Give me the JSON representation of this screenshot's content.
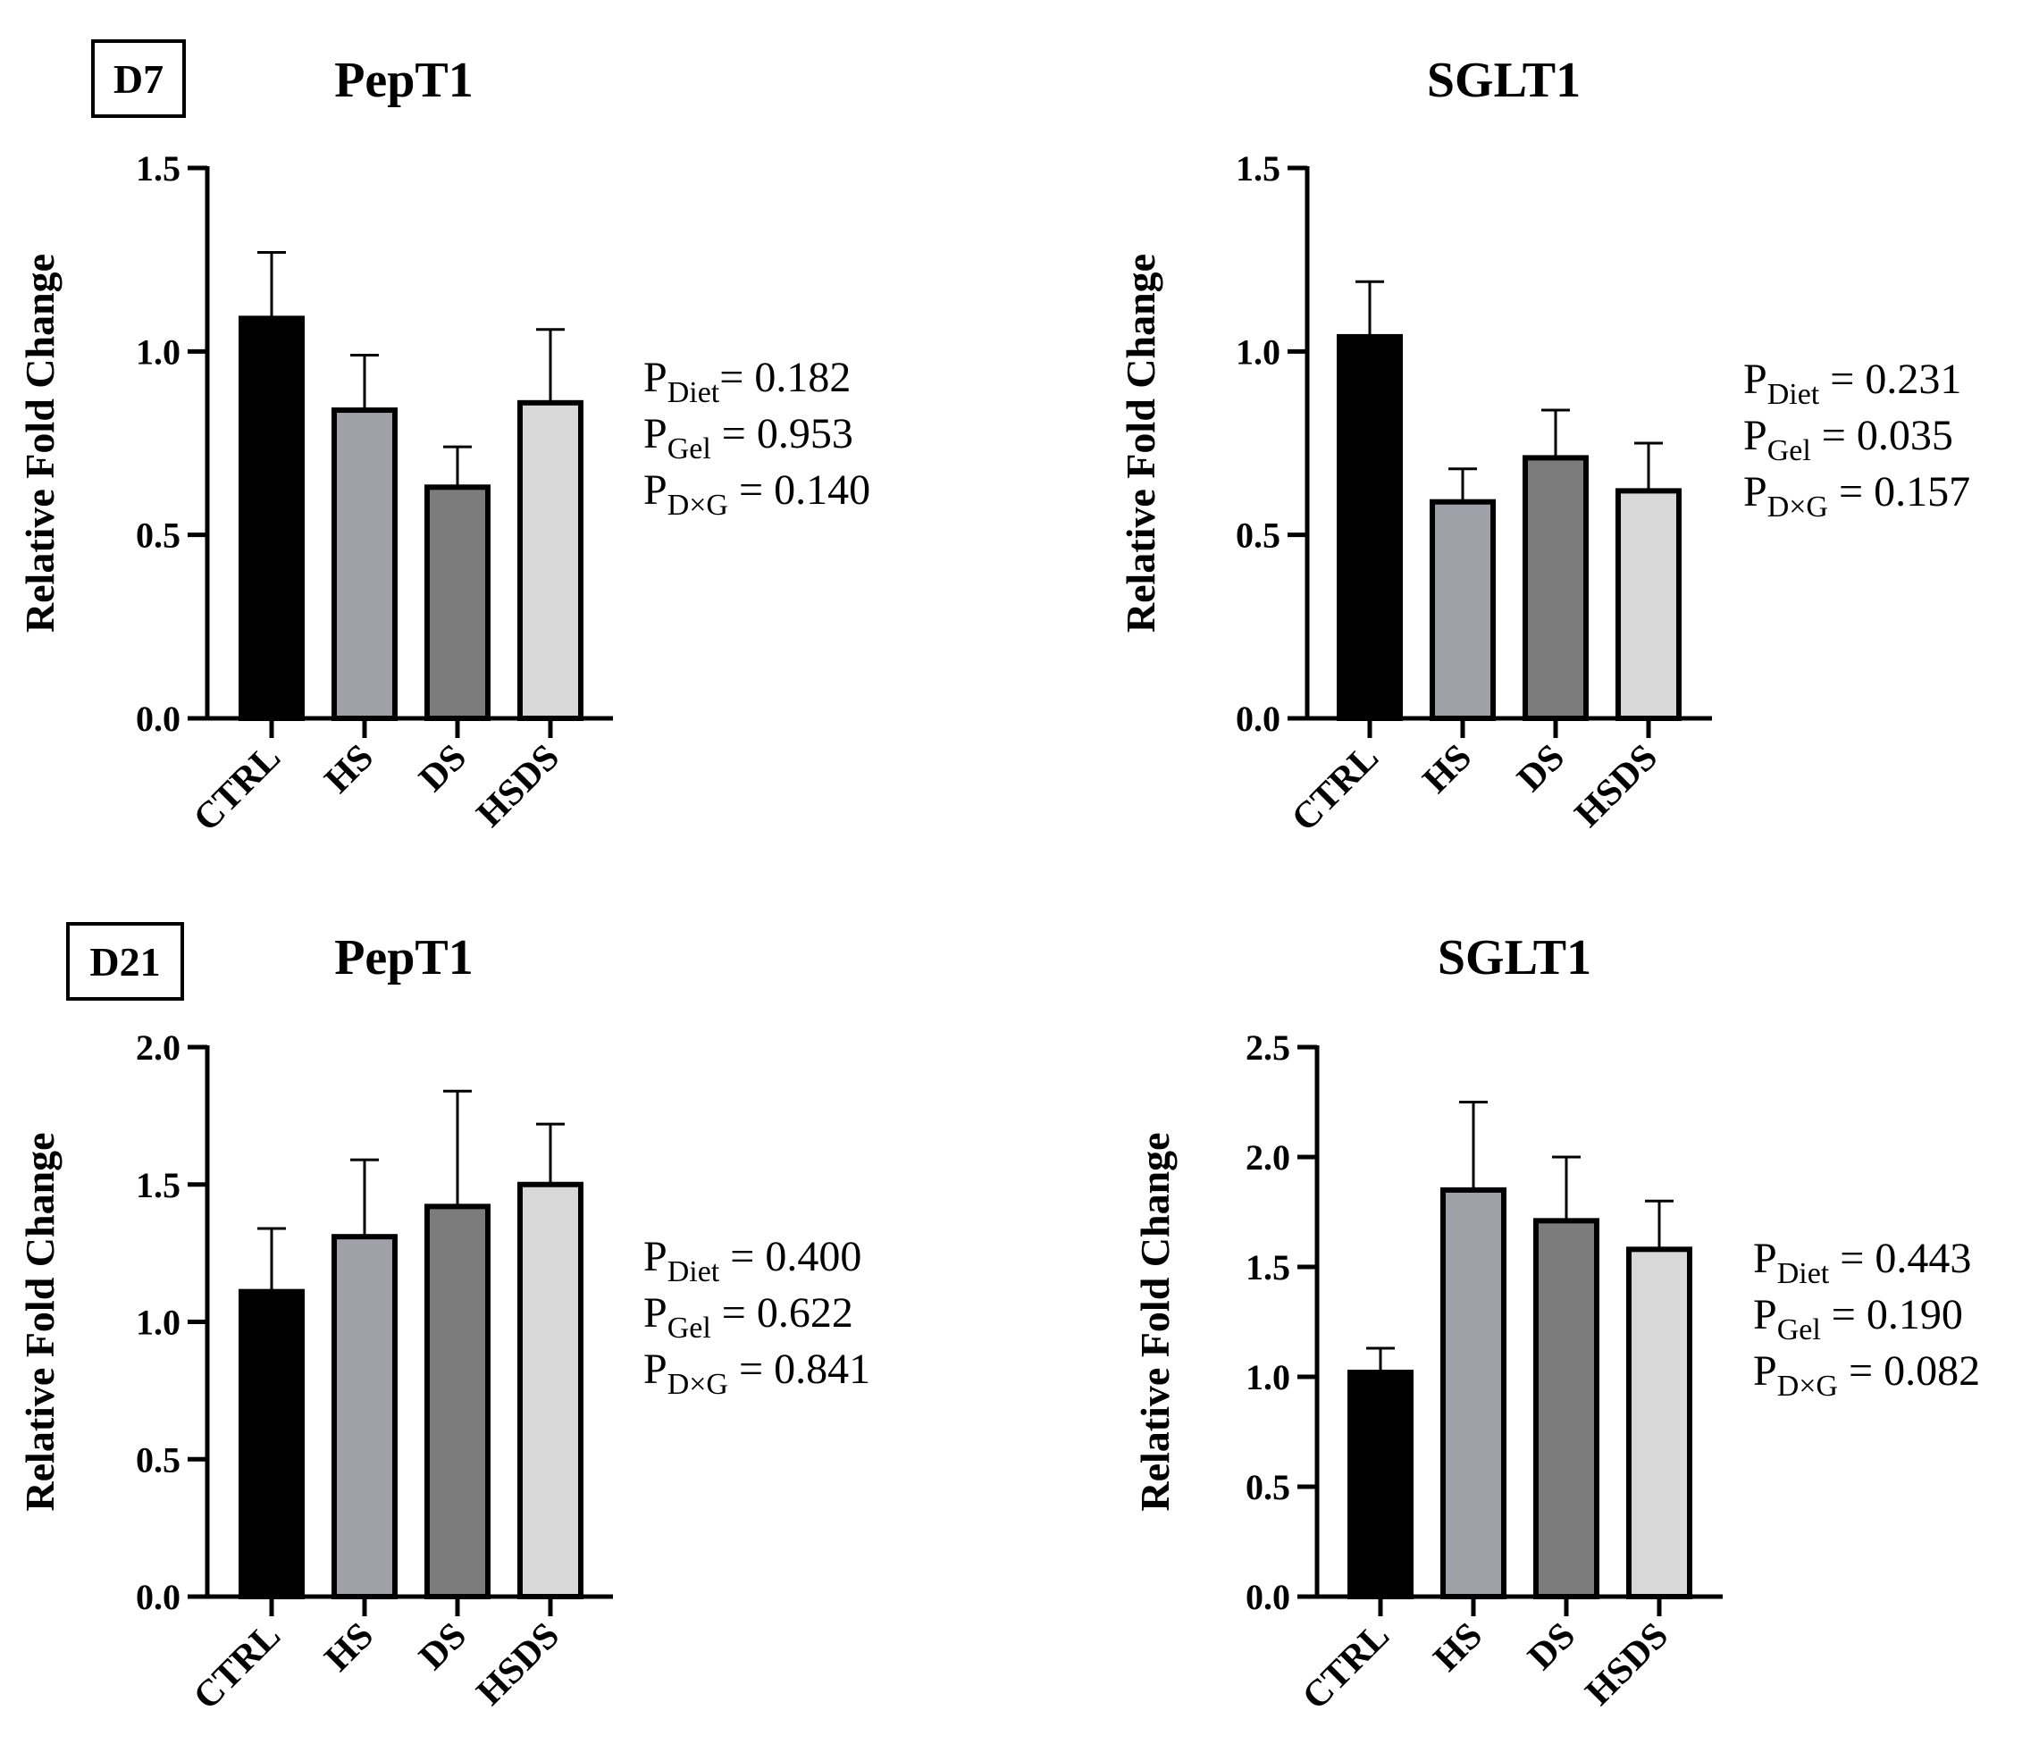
{
  "chart_data": [
    {
      "type": "bar",
      "day_label": "D7",
      "title": "PepT1",
      "categories": [
        "CTRL",
        "HS",
        "DS",
        "HSDS"
      ],
      "values": [
        1.09,
        0.84,
        0.63,
        0.86
      ],
      "errors": [
        0.18,
        0.15,
        0.11,
        0.2
      ],
      "colors": [
        "#000000",
        "#a0a0a8",
        "#7c7c7c",
        "#d8d8d8"
      ],
      "ylabel": "Relative Fold Change",
      "ylim": [
        0,
        1.5
      ],
      "yticks": [
        "0.0",
        "0.5",
        "1.0",
        "1.5"
      ],
      "stats": [
        {
          "sub": "Diet",
          "value": "= 0.182"
        },
        {
          "sub": "Gel",
          "value": " = 0.953"
        },
        {
          "sub": "D×G",
          "value": " = 0.140"
        }
      ]
    },
    {
      "type": "bar",
      "day_label": "",
      "title": "SGLT1",
      "categories": [
        "CTRL",
        "HS",
        "DS",
        "HSDS"
      ],
      "values": [
        1.04,
        0.59,
        0.71,
        0.62
      ],
      "errors": [
        0.15,
        0.09,
        0.13,
        0.13
      ],
      "colors": [
        "#000000",
        "#a0a0a8",
        "#7c7c7c",
        "#d8d8d8"
      ],
      "ylabel": "Relative Fold Change",
      "ylim": [
        0,
        1.5
      ],
      "yticks": [
        "0.0",
        "0.5",
        "1.0",
        "1.5"
      ],
      "stats": [
        {
          "sub": "Diet",
          "value": " = 0.231"
        },
        {
          "sub": "Gel",
          "value": " = 0.035"
        },
        {
          "sub": "D×G",
          "value": " = 0.157"
        }
      ]
    },
    {
      "type": "bar",
      "day_label": "D21",
      "title": "PepT1",
      "categories": [
        "CTRL",
        "HS",
        "DS",
        "HSDS"
      ],
      "values": [
        1.11,
        1.31,
        1.42,
        1.5
      ],
      "errors": [
        0.23,
        0.28,
        0.42,
        0.22
      ],
      "colors": [
        "#000000",
        "#a0a0a8",
        "#7c7c7c",
        "#d8d8d8"
      ],
      "ylabel": "Relative Fold Change",
      "ylim": [
        0,
        2.0
      ],
      "yticks": [
        "0.0",
        "0.5",
        "1.0",
        "1.5",
        "2.0"
      ],
      "stats": [
        {
          "sub": "Diet",
          "value": " = 0.400"
        },
        {
          "sub": "Gel",
          "value": " = 0.622"
        },
        {
          "sub": "D×G",
          "value": " = 0.841"
        }
      ]
    },
    {
      "type": "bar",
      "day_label": "",
      "title": "SGLT1",
      "categories": [
        "CTRL",
        "HS",
        "DS",
        "HSDS"
      ],
      "values": [
        1.02,
        1.85,
        1.71,
        1.58
      ],
      "errors": [
        0.11,
        0.4,
        0.29,
        0.22
      ],
      "colors": [
        "#000000",
        "#a0a0a8",
        "#7c7c7c",
        "#d8d8d8"
      ],
      "ylabel": "Relative Fold Change",
      "ylim": [
        0,
        2.5
      ],
      "yticks": [
        "0.0",
        "0.5",
        "1.0",
        "1.5",
        "2.0",
        "2.5"
      ],
      "stats": [
        {
          "sub": "Diet",
          "value": " = 0.443"
        },
        {
          "sub": "Gel",
          "value": " = 0.190"
        },
        {
          "sub": "D×G",
          "value": " = 0.082"
        }
      ]
    }
  ]
}
